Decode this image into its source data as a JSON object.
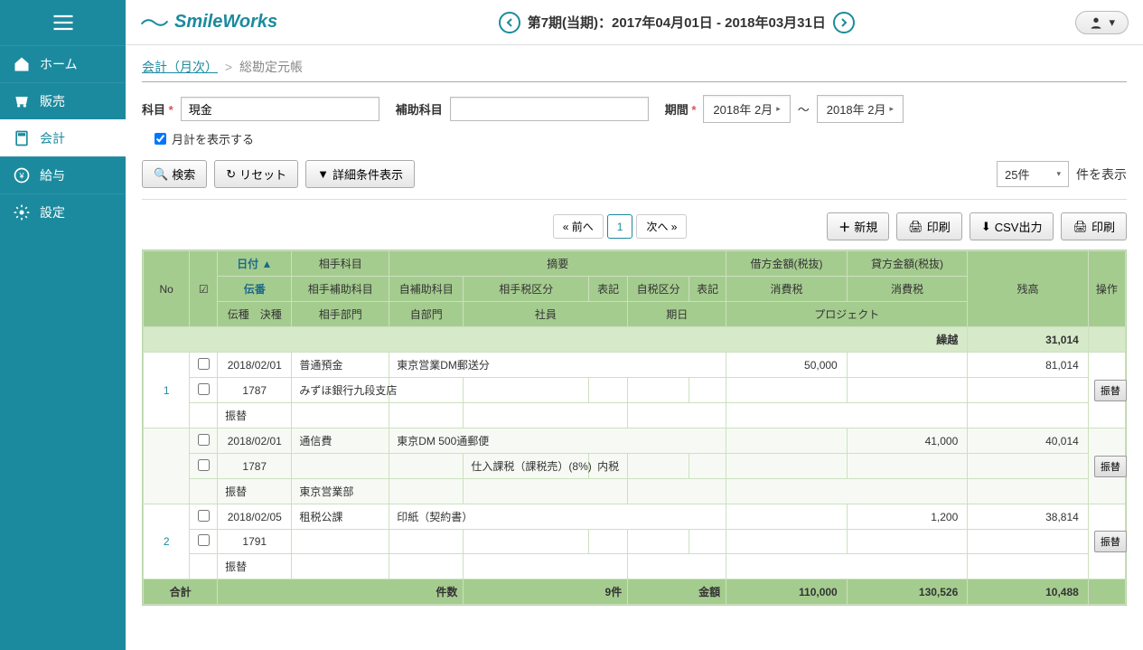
{
  "brand": "SmileWorks",
  "period_label": "第7期(当期)：2017年04月01日 - 2018年03月31日",
  "sidebar": {
    "items": [
      {
        "label": "ホーム",
        "icon": "home"
      },
      {
        "label": "販売",
        "icon": "cart"
      },
      {
        "label": "会計",
        "icon": "calc",
        "active": true
      },
      {
        "label": "給与",
        "icon": "yen"
      },
      {
        "label": "設定",
        "icon": "gear"
      }
    ]
  },
  "breadcrumb": {
    "parent": "会計（月次）",
    "current": "総勘定元帳"
  },
  "filters": {
    "account_label": "科目",
    "account_value": "現金",
    "sub_account_label": "補助科目",
    "sub_account_value": "",
    "period_label": "期間",
    "period_from": "2018年 2月",
    "period_to": "2018年 2月",
    "tilde": "〜",
    "show_monthly_label": "月計を表示する"
  },
  "buttons": {
    "search": "検索",
    "reset": "リセット",
    "detail": "詳細条件表示",
    "new": "新規",
    "print": "印刷",
    "csv": "CSV出力",
    "print2": "印刷",
    "prev": "« 前へ",
    "page1": "1",
    "next": "次へ »",
    "transfer": "振替"
  },
  "page_size": "25件",
  "display_suffix": "件を表示",
  "table": {
    "headers": {
      "no": "No",
      "chk": "☑",
      "date": "日付 ▲",
      "opp_acct": "相手科目",
      "summary": "摘要",
      "debit": "借方金額(税抜)",
      "credit": "貸方金額(税抜)",
      "balance": "残高",
      "op": "操作",
      "slip_no": "伝番",
      "opp_sub": "相手補助科目",
      "self_sub": "自補助科目",
      "opp_tax": "相手税区分",
      "note1": "表記",
      "self_tax": "自税区分",
      "note2": "表記",
      "debit_tax": "消費税",
      "credit_tax": "消費税",
      "slip_type": "伝種",
      "settle": "決種",
      "opp_dept": "相手部門",
      "self_dept": "自部門",
      "staff": "社員",
      "due": "期日",
      "project": "プロジェクト"
    },
    "carry_label": "繰越",
    "carry_balance": "31,014",
    "total_label": "合計",
    "total_count_label": "件数",
    "total_count": "9件",
    "total_amount_label": "金額",
    "total_debit": "110,000",
    "total_credit": "130,526",
    "total_balance": "10,488",
    "rows": [
      {
        "no": "1",
        "date": "2018/02/01",
        "acct": "普通預金",
        "summary": "東京営業DM郵送分",
        "debit": "50,000",
        "credit": "",
        "balance": "81,014",
        "slip": "1787",
        "sub": "みずほ銀行九段支店",
        "type": "振替",
        "opp_tax": "",
        "note1": "",
        "self_tax": "",
        "note2": "",
        "opp_dept": ""
      },
      {
        "no": "",
        "date": "2018/02/01",
        "acct": "通信費",
        "summary": "東京DM 500通郵便",
        "debit": "",
        "credit": "41,000",
        "balance": "40,014",
        "slip": "1787",
        "sub": "",
        "type": "振替",
        "opp_tax": "仕入課税（課税売）(8%)",
        "note1": "内税",
        "self_tax": "",
        "note2": "",
        "opp_dept": "東京営業部",
        "alt": true
      },
      {
        "no": "2",
        "date": "2018/02/05",
        "acct": "租税公課",
        "summary": "印紙（契約書）",
        "debit": "",
        "credit": "1,200",
        "balance": "38,814",
        "slip": "1791",
        "sub": "",
        "type": "振替",
        "opp_tax": "",
        "note1": "",
        "self_tax": "",
        "note2": "",
        "opp_dept": ""
      }
    ]
  },
  "colors": {
    "brand": "#1c8a9e",
    "th_bg": "#a5cc8f",
    "border": "#cce0bf"
  }
}
